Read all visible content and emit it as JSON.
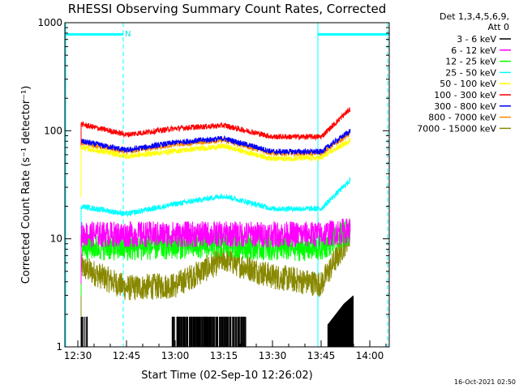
{
  "chart_data": {
    "type": "line",
    "title": "RHESSI Observing Summary Count Rates, Corrected",
    "xlabel": "Start Time (02-Sep-10 12:26:02)",
    "ylabel": "Corrected Count Rate (s⁻¹ detector⁻¹)",
    "yscale": "log",
    "ylim": [
      1,
      1000
    ],
    "xlim": [
      "12:26",
      "14:06"
    ],
    "x_ticks": [
      "12:30",
      "12:45",
      "13:00",
      "13:15",
      "13:30",
      "13:45",
      "14:00"
    ],
    "y_ticks": [
      "1",
      "10",
      "100",
      "1000"
    ],
    "grid": false,
    "legend_position": "top-right",
    "legend_header": [
      "Det 1,3,4,5,6,9,",
      "Att 0"
    ],
    "footer": "16-Oct-2021 02:50",
    "flag_label": "N",
    "night_intervals": [
      [
        "12:26",
        "12:44"
      ],
      [
        "13:44",
        "14:06"
      ]
    ],
    "series": [
      {
        "name": "3 - 6 keV",
        "color": "#000000",
        "pattern": "dark",
        "x": [
          "12:31",
          "12:32",
          "13:00",
          "13:05",
          "13:10",
          "13:15",
          "13:20",
          "13:22",
          "13:47",
          "13:52",
          "13:55"
        ],
        "y": [
          1.0,
          1.8,
          1.0,
          1.9,
          1.9,
          1.8,
          1.8,
          1.0,
          1.6,
          2.5,
          3.0
        ]
      },
      {
        "name": "6 - 12 keV",
        "color": "#ff00ff",
        "pattern": "flat",
        "x": [
          "12:31",
          "12:45",
          "13:00",
          "13:15",
          "13:30",
          "13:45",
          "13:54"
        ],
        "y": [
          11,
          11,
          11,
          11,
          11,
          11,
          12
        ]
      },
      {
        "name": "12 - 25 keV",
        "color": "#00ff00",
        "pattern": "flat",
        "x": [
          "12:31",
          "12:45",
          "13:00",
          "13:15",
          "13:30",
          "13:45",
          "13:54"
        ],
        "y": [
          8.5,
          8.2,
          8.5,
          8.8,
          8.2,
          8.2,
          12
        ]
      },
      {
        "name": "25 - 50 keV",
        "color": "#00ffff",
        "pattern": "hump",
        "x": [
          "12:31",
          "12:45",
          "13:00",
          "13:15",
          "13:30",
          "13:45",
          "13:54"
        ],
        "y": [
          20,
          17,
          21,
          25,
          19,
          19,
          35
        ]
      },
      {
        "name": "50 - 100 keV",
        "color": "#ffff00",
        "pattern": "hump",
        "x": [
          "12:31",
          "12:45",
          "13:00",
          "13:15",
          "13:30",
          "13:45",
          "13:54"
        ],
        "y": [
          70,
          58,
          65,
          72,
          55,
          56,
          82
        ]
      },
      {
        "name": "100 - 300 keV",
        "color": "#ff0000",
        "pattern": "hump",
        "x": [
          "12:31",
          "12:45",
          "13:00",
          "13:15",
          "13:30",
          "13:45",
          "13:54"
        ],
        "y": [
          115,
          92,
          105,
          112,
          88,
          88,
          160
        ]
      },
      {
        "name": "300 - 800 keV",
        "color": "#0000ff",
        "pattern": "hump",
        "x": [
          "12:31",
          "12:45",
          "13:00",
          "13:15",
          "13:30",
          "13:45",
          "13:54"
        ],
        "y": [
          80,
          66,
          78,
          85,
          64,
          64,
          100
        ]
      },
      {
        "name": "800 - 7000 keV",
        "color": "#ff8800",
        "pattern": "hump",
        "x": [
          "12:31",
          "12:45",
          "13:00",
          "13:15",
          "13:30",
          "13:45",
          "13:54"
        ],
        "y": [
          78,
          64,
          75,
          82,
          62,
          62,
          95
        ]
      },
      {
        "name": "7000 - 15000 keV",
        "color": "#888800",
        "pattern": "hump",
        "x": [
          "12:31",
          "12:45",
          "13:00",
          "13:15",
          "13:30",
          "13:45",
          "13:54"
        ],
        "y": [
          5.5,
          3.5,
          3.7,
          6.5,
          4.5,
          3.8,
          11
        ]
      }
    ]
  }
}
